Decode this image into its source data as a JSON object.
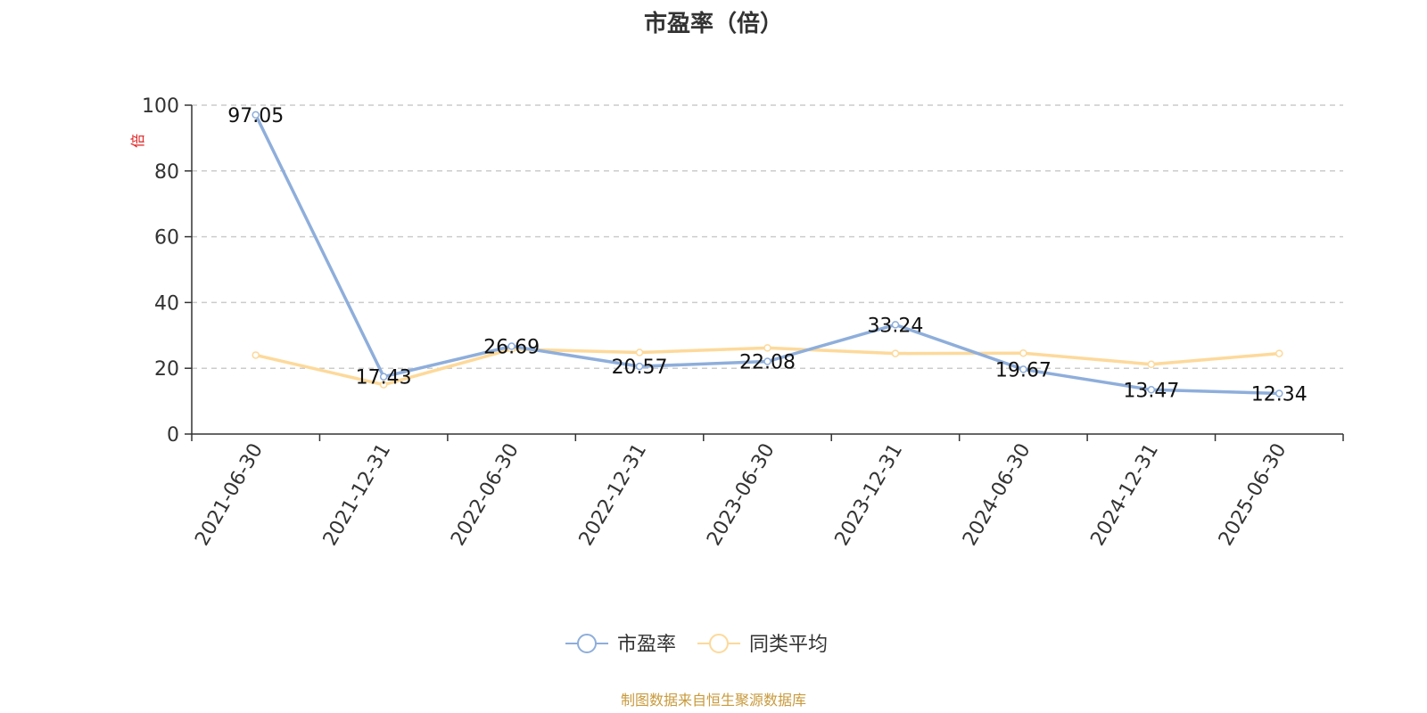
{
  "chart_data": {
    "type": "line",
    "title": "市盈率（倍）",
    "ylabel": "倍",
    "ylim": [
      0,
      100
    ],
    "yticks": [
      0,
      20,
      40,
      60,
      80,
      100
    ],
    "grid": true,
    "categories": [
      "2021-06-30",
      "2021-12-31",
      "2022-06-30",
      "2022-12-31",
      "2023-06-30",
      "2023-12-31",
      "2024-06-30",
      "2024-12-31",
      "2025-06-30"
    ],
    "series": [
      {
        "name": "市盈率",
        "color": "#8eaedb",
        "values": [
          97.05,
          17.43,
          26.69,
          20.57,
          22.08,
          33.24,
          19.67,
          13.47,
          12.34
        ],
        "labels": [
          "97.05",
          "17.43",
          "26.69",
          "20.57",
          "22.08",
          "33.24",
          "19.67",
          "13.47",
          "12.34"
        ]
      },
      {
        "name": "同类平均",
        "color": "#fdd99a",
        "values": [
          24.0,
          15.0,
          25.8,
          24.8,
          26.2,
          24.5,
          24.6,
          21.2,
          24.5
        ]
      }
    ],
    "legend_position": "bottom"
  },
  "source_note": "制图数据来自恒生聚源数据库"
}
